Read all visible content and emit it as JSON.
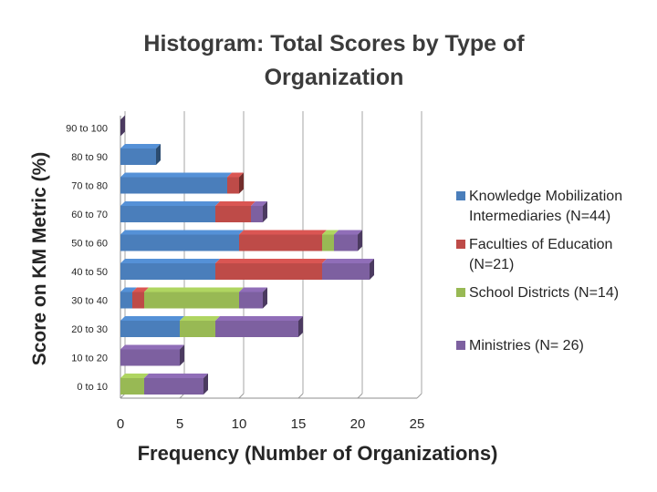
{
  "chart_data": {
    "type": "bar",
    "orientation": "horizontal",
    "stacked": true,
    "title": "Histogram: Total Scores by Type of Organization",
    "title_lines": [
      "Histogram: Total Scores by Type of",
      "Organization"
    ],
    "xlabel": "Frequency (Number of Organizations)",
    "ylabel": "Score on KM Metric (%)",
    "xlim": [
      0,
      25
    ],
    "x_ticks": [
      0,
      5,
      10,
      15,
      20,
      25
    ],
    "grid": "vertical",
    "legend_position": "right",
    "categories": [
      "0 to 10",
      "10 to 20",
      "20 to 30",
      "30 to 40",
      "40 to 50",
      "50 to 60",
      "60 to 70",
      "70 to 80",
      "80 to 90",
      "90 to 100"
    ],
    "series": [
      {
        "name": "Knowledge Mobilization Intermediaries (N=44)",
        "legend_lines": [
          "Knowledge Mobilization",
          "Intermediaries (N=44)"
        ],
        "color": "#4a7ebb",
        "values": [
          0,
          0,
          5,
          1,
          8,
          10,
          8,
          9,
          3,
          0
        ]
      },
      {
        "name": "Faculties of Education (N=21)",
        "legend_lines": [
          "Faculties of Education",
          "(N=21)"
        ],
        "color": "#be4b48",
        "values": [
          0,
          0,
          0,
          1,
          9,
          7,
          3,
          1,
          0,
          0
        ]
      },
      {
        "name": "School Districts (N=14)",
        "legend_lines": [
          "School Districts (N=14)"
        ],
        "color": "#98b954",
        "values": [
          2,
          0,
          3,
          8,
          0,
          1,
          0,
          0,
          0,
          0
        ]
      },
      {
        "name": "Ministries (N= 26)",
        "legend_lines": [
          "Ministries (N= 26)"
        ],
        "color": "#7d60a0",
        "values": [
          5,
          5,
          7,
          2,
          4,
          2,
          1,
          0,
          0,
          0
        ]
      }
    ]
  }
}
